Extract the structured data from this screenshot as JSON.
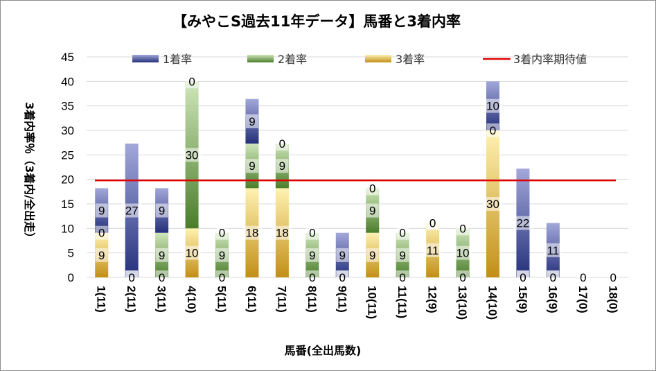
{
  "chart_data": {
    "type": "bar",
    "stacked": true,
    "title": "【みやこS過去11年データ】馬番と3着内率",
    "xlabel": "馬番(全出馬数)",
    "ylabel": "3着内率％（3着内/全出走）",
    "ylim": [
      0,
      45
    ],
    "yticks": [
      "0",
      "5",
      "10",
      "15",
      "20",
      "25",
      "30",
      "35",
      "40",
      "45"
    ],
    "categories": [
      "1(11)",
      "2(11)",
      "3(11)",
      "4(10)",
      "5(11)",
      "6(11)",
      "7(11)",
      "8(11)",
      "9(11)",
      "10(11)",
      "11(11)",
      "12(9)",
      "13(10)",
      "14(10)",
      "15(9)",
      "16(9)",
      "17(0)",
      "18(0)"
    ],
    "series": [
      {
        "name": "3着率",
        "key": "third",
        "values": [
          9,
          0,
          0,
          10,
          0,
          18,
          18,
          0,
          0,
          9,
          0,
          11,
          0,
          30,
          0,
          0,
          0,
          0
        ]
      },
      {
        "name": "2着率",
        "key": "second",
        "values": [
          0,
          0,
          9,
          30,
          9,
          9,
          9,
          9,
          0,
          9,
          9,
          0,
          10,
          0,
          0,
          0,
          0,
          0
        ]
      },
      {
        "name": "1着率",
        "key": "first",
        "values": [
          9,
          27,
          9,
          0,
          0,
          9,
          0,
          0,
          9,
          0,
          0,
          0,
          0,
          10,
          22,
          11,
          0,
          0
        ]
      }
    ],
    "display_values": [
      [
        9,
        0,
        0,
        10,
        0,
        18,
        18,
        0,
        0,
        9,
        0,
        11,
        0,
        30,
        0,
        0,
        0,
        0
      ],
      [
        0,
        0,
        9,
        30,
        9,
        9,
        9,
        9,
        0,
        9,
        9,
        0,
        10,
        0,
        0,
        0,
        0,
        0
      ],
      [
        9,
        27,
        9,
        0,
        0,
        9,
        0,
        0,
        9,
        0,
        0,
        0,
        0,
        10,
        22,
        11,
        0,
        0
      ]
    ],
    "actual_values": [
      [
        9.1,
        0,
        0,
        10,
        0,
        18.2,
        18.2,
        0,
        0,
        9.1,
        0,
        11.1,
        0,
        30,
        0,
        0,
        0,
        0
      ],
      [
        0,
        0,
        9.1,
        30,
        9.1,
        9.1,
        9.1,
        9.1,
        0,
        9.1,
        9.1,
        0,
        10,
        0,
        0,
        0,
        0,
        0
      ],
      [
        9.1,
        27.3,
        9.1,
        0,
        0,
        9.1,
        0,
        0,
        9.1,
        0,
        0,
        0,
        0,
        10,
        22.2,
        11.1,
        0,
        0
      ]
    ],
    "expected_line": {
      "name": "3着内率期待値",
      "value": 19.8
    },
    "legend_order": [
      "1着率",
      "2着率",
      "3着率",
      "3着内率期待値"
    ],
    "legend_position": "top",
    "grid": true
  },
  "colors": {
    "first_dark": "#24307a",
    "first_light": "#a3a8da",
    "second_dark": "#4a7d2a",
    "second_light": "#cfe6ba",
    "third_dark": "#c28f16",
    "third_light": "#fff2b2",
    "expected_line": "#e00000",
    "grid": "#d9d9d9"
  }
}
